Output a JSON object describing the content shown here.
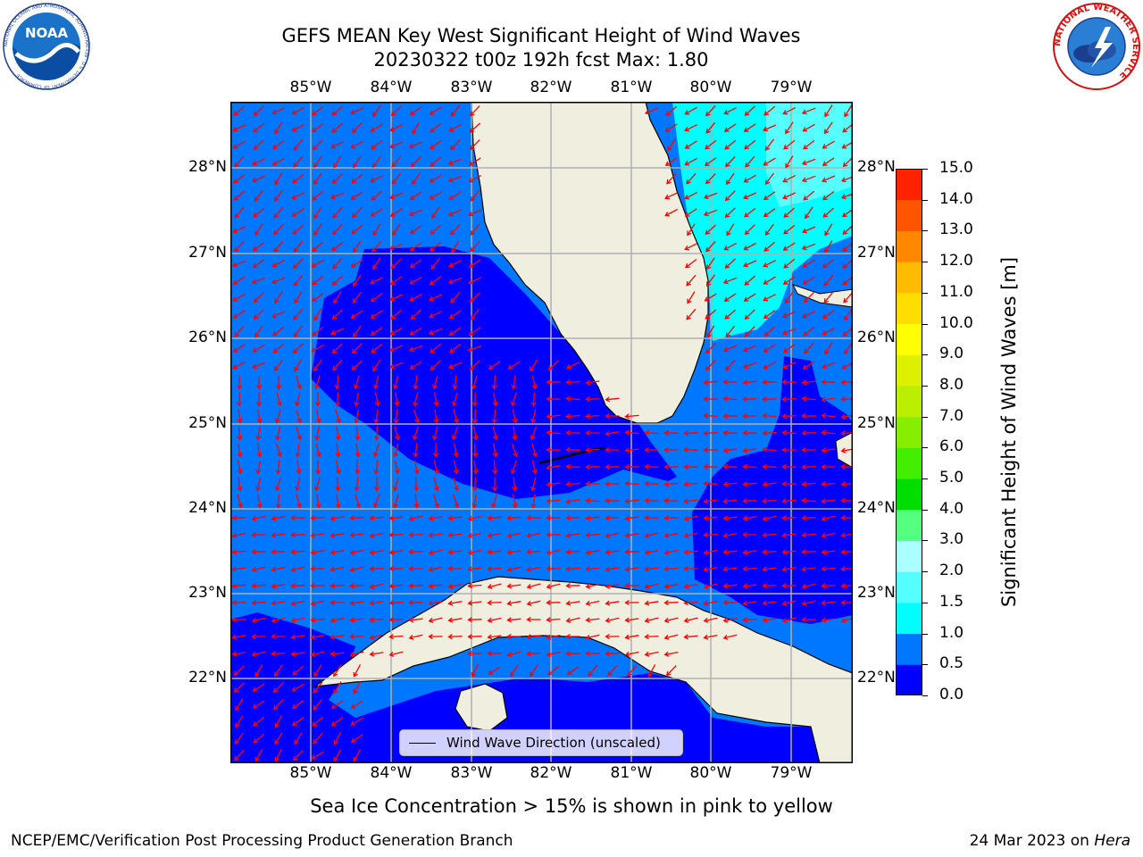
{
  "header": {
    "title_line1": "GEFS MEAN Key West Significant Height of Wind Waves",
    "title_line2": "20230322 t00z 192h fcst   Max: 1.80"
  },
  "logos": {
    "noaa_text": "NOAA",
    "noaa_ring": "NATIONAL OCEANIC AND ATMOSPHERIC ADMINISTRATION · U.S. DEPARTMENT OF COMMERCE",
    "nws_ring": "NATIONAL WEATHER SERVICE"
  },
  "map": {
    "lon_ticks": [
      "85°W",
      "84°W",
      "83°W",
      "82°W",
      "81°W",
      "80°W",
      "79°W"
    ],
    "lat_ticks": [
      "28°N",
      "27°N",
      "26°N",
      "25°N",
      "24°N",
      "23°N",
      "22°N"
    ],
    "legend_label": "Wind Wave Direction (unscaled)",
    "arrow_color": "#ff0000",
    "land_color": "#efeedf",
    "colors": {
      "band_0_05": "#0000ff",
      "band_05_10": "#0077ff",
      "band_10_15": "#00fdff",
      "band_15_20": "#55ffff"
    }
  },
  "colorbar": {
    "label": "Significant Height of Wind Waves [m]",
    "ticks": [
      "0.0",
      "0.5",
      "1.0",
      "1.5",
      "2.0",
      "3.0",
      "4.0",
      "5.0",
      "6.0",
      "7.0",
      "8.0",
      "9.0",
      "10.0",
      "11.0",
      "12.0",
      "13.0",
      "14.0",
      "15.0"
    ],
    "colors": [
      "#0000ff",
      "#0077ff",
      "#00fdff",
      "#55ffff",
      "#aaffff",
      "#55ff7f",
      "#00dd00",
      "#44ee00",
      "#88ee00",
      "#bbee00",
      "#ddf000",
      "#ffff00",
      "#ffdd00",
      "#ffbb00",
      "#ff8800",
      "#ff5500",
      "#ff2200"
    ]
  },
  "footer": {
    "sea_ice_note": "Sea Ice Concentration > 15% is shown in pink to yellow",
    "branch": "NCEP/EMC/Verification Post Processing Product Generation Branch",
    "date": "24 Mar 2023 on ",
    "host": "Hera"
  }
}
